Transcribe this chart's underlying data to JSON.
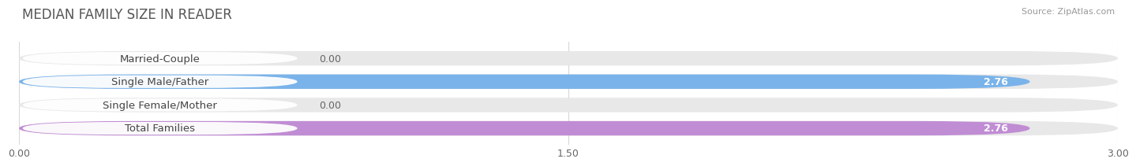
{
  "title": "MEDIAN FAMILY SIZE IN READER",
  "source": "Source: ZipAtlas.com",
  "categories": [
    "Married-Couple",
    "Single Male/Father",
    "Single Female/Mother",
    "Total Families"
  ],
  "values": [
    0.0,
    2.76,
    0.0,
    2.76
  ],
  "bar_colors": [
    "#72cece",
    "#7ab3ea",
    "#f5a8bf",
    "#c08dd4"
  ],
  "xlim": [
    0,
    3.0
  ],
  "xticks": [
    0.0,
    1.5,
    3.0
  ],
  "xtick_labels": [
    "0.00",
    "1.50",
    "3.00"
  ],
  "bar_height": 0.62,
  "background_color": "#ffffff",
  "bar_bg_color": "#e8e8e8",
  "grid_color": "#d8d8d8",
  "title_fontsize": 12,
  "label_fontsize": 9.5,
  "value_fontsize": 9
}
